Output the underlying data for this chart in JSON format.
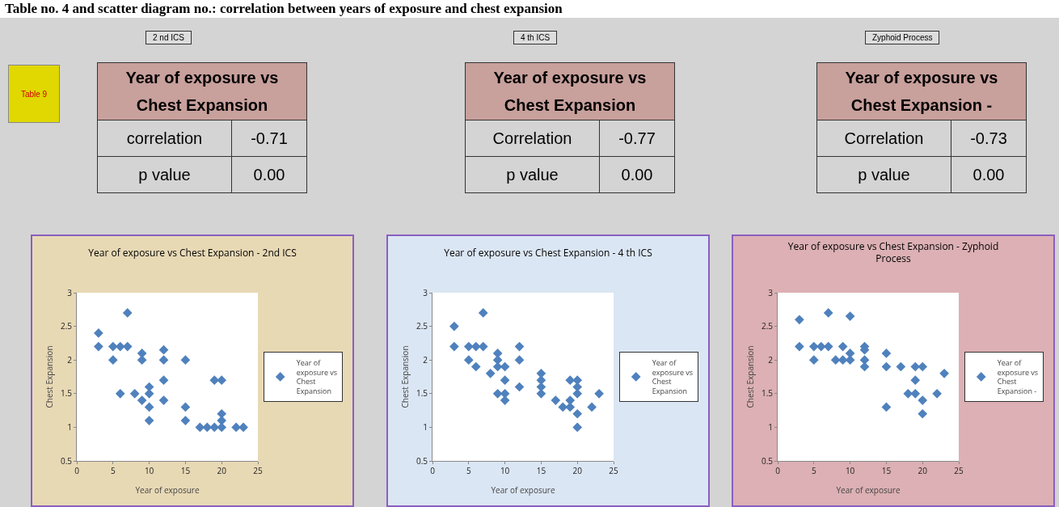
{
  "chart_data": [
    {
      "type": "other",
      "title": "Table no. 4 and scatter diagram no.: correlation between years of exposure and chest expansion",
      "annotations": [
        "Table 9"
      ]
    },
    {
      "type": "other",
      "title": "2 nd ICS",
      "annotations": [
        "Year of exposure vs Chest Expansion",
        "correlation",
        "-0.71",
        "p value",
        "0.00"
      ]
    },
    {
      "type": "other",
      "title": "4 th ICS",
      "annotations": [
        "Year of exposure vs Chest Expansion",
        "Correlation",
        "-0.77",
        "p value",
        "0.00"
      ]
    },
    {
      "type": "other",
      "title": "Zyphoid Process",
      "annotations": [
        "Year of exposure vs Chest Expansion -",
        "Correlation",
        "-0.73",
        "p value",
        "0.00"
      ]
    },
    {
      "type": "scatter",
      "title": "Year of exposure vs Chest Expansion - 2nd ICS",
      "xlabel": "Year of exposure",
      "ylabel": "Chest Expansion",
      "xlim": [
        0,
        25
      ],
      "xticks": [
        0,
        5,
        10,
        15,
        20,
        25
      ],
      "ylim": [
        0.5,
        3
      ],
      "yticks": [
        0.5,
        1,
        1.5,
        2,
        2.5,
        3
      ],
      "grid": false,
      "legend": "right",
      "marker": "diamond",
      "series": [
        {
          "name": "Year of exposure vs Chest Expansion",
          "color": "#4f81bd",
          "x": [
            3,
            3,
            5,
            5,
            6,
            7,
            7,
            6,
            8,
            9,
            9,
            9,
            10,
            10,
            10,
            10,
            12,
            12,
            12,
            12,
            15,
            15,
            15,
            17,
            18,
            19,
            19,
            20,
            20,
            20,
            20,
            22,
            23
          ],
          "values": [
            2.4,
            2.2,
            2.2,
            2.0,
            2.2,
            2.7,
            2.2,
            1.5,
            1.5,
            2.1,
            2.0,
            1.4,
            1.6,
            1.5,
            1.3,
            1.1,
            2.15,
            2.0,
            1.7,
            1.4,
            2.0,
            1.3,
            1.1,
            1.0,
            1.0,
            1.0,
            1.7,
            1.7,
            1.2,
            1.1,
            1.0,
            1.0,
            1.0
          ]
        }
      ]
    },
    {
      "type": "scatter",
      "title": "Year of exposure vs Chest Expansion - 4 th ICS",
      "xlabel": "Year of exposure",
      "ylabel": "Chest Expansion",
      "xlim": [
        0,
        25
      ],
      "xticks": [
        0,
        5,
        10,
        15,
        20,
        25
      ],
      "ylim": [
        0.5,
        3
      ],
      "yticks": [
        0.5,
        1,
        1.5,
        2,
        2.5,
        3
      ],
      "grid": false,
      "legend": "right",
      "marker": "diamond",
      "series": [
        {
          "name": "Year of exposure vs Chest Expansion",
          "color": "#4f81bd",
          "x": [
            3,
            3,
            5,
            5,
            6,
            6,
            7,
            7,
            8,
            9,
            9,
            9,
            9,
            10,
            10,
            10,
            10,
            12,
            12,
            12,
            15,
            15,
            15,
            15,
            17,
            18,
            19,
            19,
            19,
            20,
            20,
            20,
            20,
            20,
            22,
            23
          ],
          "values": [
            2.5,
            2.2,
            2.2,
            2.0,
            2.2,
            1.9,
            2.7,
            2.2,
            1.8,
            2.1,
            2.0,
            1.9,
            1.5,
            1.9,
            1.7,
            1.5,
            1.4,
            2.2,
            2.0,
            1.6,
            1.8,
            1.7,
            1.6,
            1.5,
            1.4,
            1.3,
            1.7,
            1.4,
            1.3,
            1.7,
            1.6,
            1.5,
            1.2,
            1.0,
            1.3,
            1.5
          ]
        }
      ]
    },
    {
      "type": "scatter",
      "title": "Year of exposure vs Chest Expansion - Zyphoid Process",
      "xlabel": "Year of exposure",
      "ylabel": "Chest Expansion",
      "xlim": [
        0,
        25
      ],
      "xticks": [
        0,
        5,
        10,
        15,
        20,
        25
      ],
      "ylim": [
        0.5,
        3
      ],
      "yticks": [
        0.5,
        1,
        1.5,
        2,
        2.5,
        3
      ],
      "grid": false,
      "legend": "right",
      "marker": "diamond",
      "series": [
        {
          "name": "Year of exposure vs Chest Expansion -",
          "color": "#4f81bd",
          "x": [
            3,
            3,
            5,
            5,
            6,
            7,
            7,
            8,
            9,
            9,
            10,
            10,
            10,
            12,
            12,
            12,
            12,
            15,
            15,
            15,
            17,
            18,
            19,
            19,
            19,
            20,
            20,
            20,
            22,
            23
          ],
          "values": [
            2.6,
            2.2,
            2.2,
            2.0,
            2.2,
            2.7,
            2.2,
            2.0,
            2.2,
            2.0,
            2.65,
            2.1,
            2.0,
            2.2,
            2.15,
            2.0,
            1.9,
            2.1,
            1.9,
            1.3,
            1.9,
            1.5,
            1.9,
            1.7,
            1.5,
            1.9,
            1.4,
            1.2,
            1.5,
            1.8
          ]
        }
      ]
    }
  ]
}
